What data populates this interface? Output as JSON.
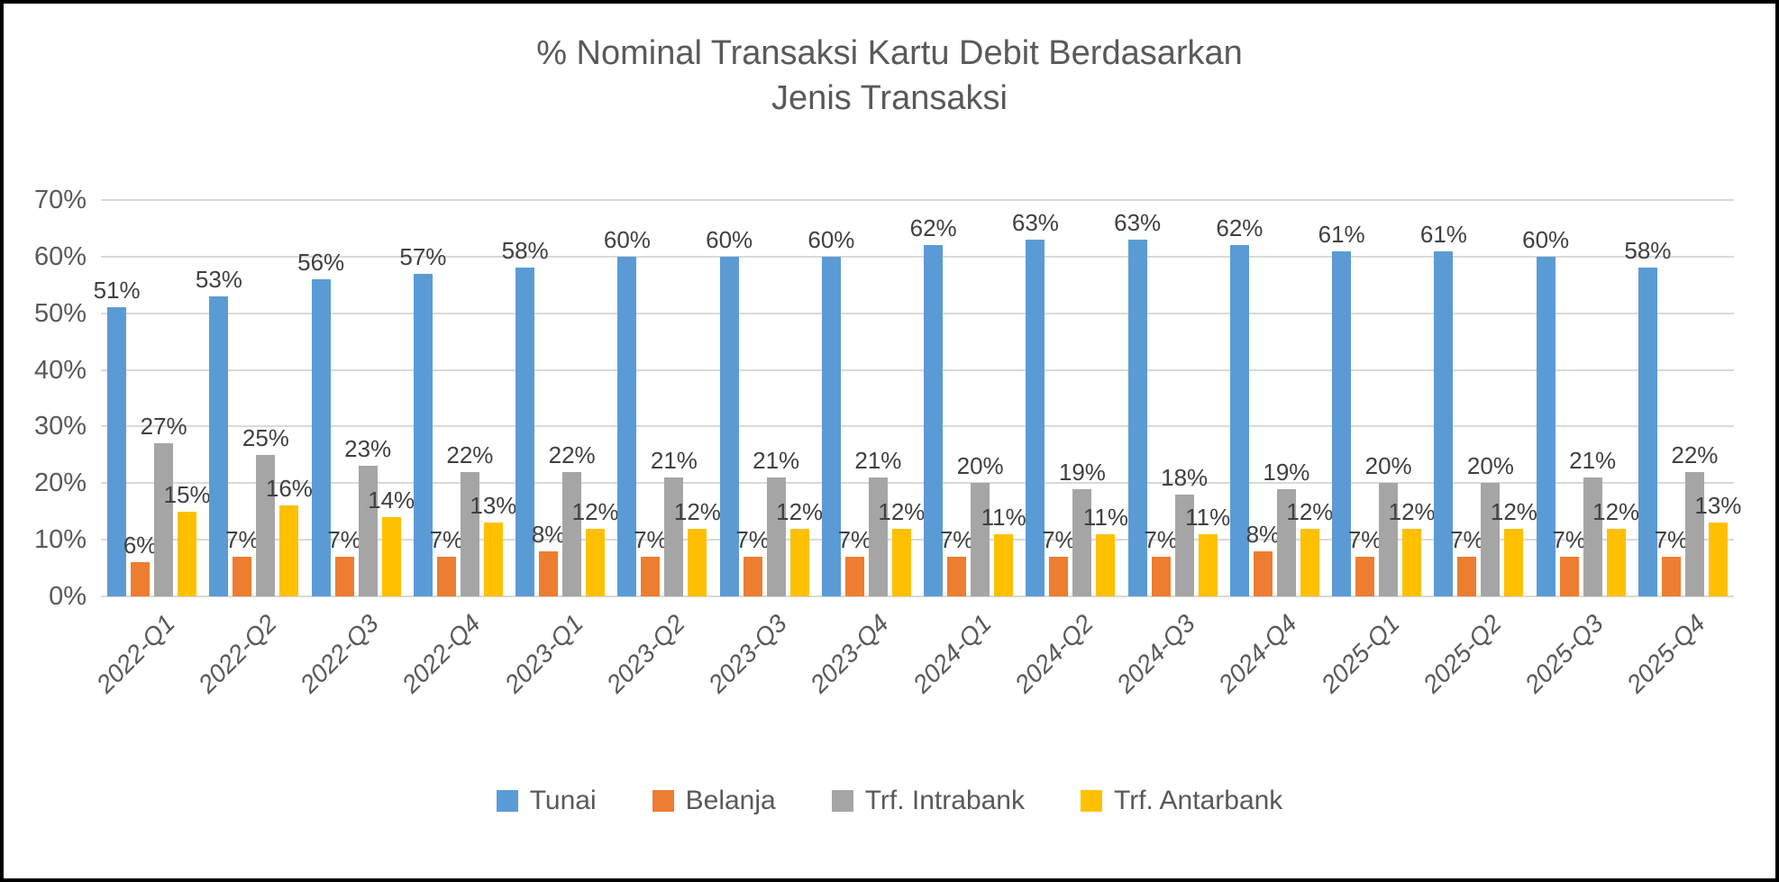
{
  "chart_data": {
    "type": "bar",
    "title": "% Nominal Transaksi Kartu Debit Berdasarkan Jenis Transaksi",
    "title_lines": [
      "% Nominal Transaksi Kartu Debit Berdasarkan",
      "Jenis Transaksi"
    ],
    "categories": [
      "2022-Q1",
      "2022-Q2",
      "2022-Q3",
      "2022-Q4",
      "2023-Q1",
      "2023-Q2",
      "2023-Q3",
      "2023-Q4",
      "2024-Q1",
      "2024-Q2",
      "2024-Q3",
      "2024-Q4",
      "2025-Q1",
      "2025-Q2",
      "2025-Q3",
      "2025-Q4"
    ],
    "series": [
      {
        "name": "Tunai",
        "color": "#5b9bd5",
        "values": [
          51,
          53,
          56,
          57,
          58,
          60,
          60,
          60,
          62,
          63,
          63,
          62,
          61,
          61,
          60,
          58
        ]
      },
      {
        "name": "Belanja",
        "color": "#ed7d31",
        "values": [
          6,
          7,
          7,
          7,
          8,
          7,
          7,
          7,
          7,
          7,
          7,
          8,
          7,
          7,
          7,
          7
        ]
      },
      {
        "name": "Trf. Intrabank",
        "color": "#a5a5a5",
        "values": [
          27,
          25,
          23,
          22,
          22,
          21,
          21,
          21,
          20,
          19,
          18,
          19,
          20,
          20,
          21,
          22
        ]
      },
      {
        "name": "Trf. Antarbank",
        "color": "#ffc000",
        "values": [
          15,
          16,
          14,
          13,
          12,
          12,
          12,
          12,
          11,
          11,
          11,
          12,
          12,
          12,
          12,
          13
        ]
      }
    ],
    "value_suffix": "%",
    "xlabel": "",
    "ylabel": "",
    "ylim": [
      0,
      70
    ],
    "y_ticks": [
      0,
      10,
      20,
      30,
      40,
      50,
      60,
      70
    ],
    "y_tick_labels": [
      "0%",
      "10%",
      "20%",
      "30%",
      "40%",
      "50%",
      "60%",
      "70%"
    ],
    "grid": "horizontal",
    "legend_position": "bottom",
    "data_labels": "outside-end"
  }
}
